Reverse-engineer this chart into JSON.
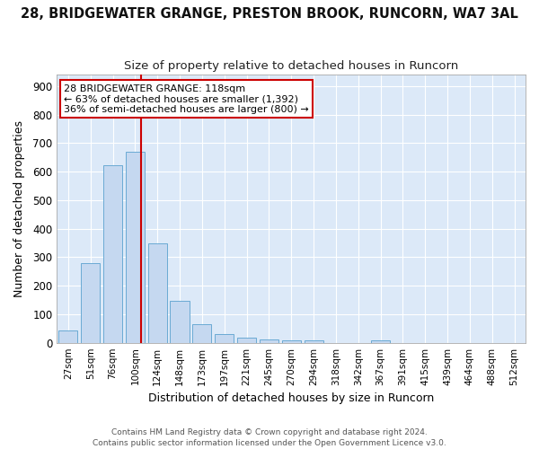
{
  "title": "28, BRIDGEWATER GRANGE, PRESTON BROOK, RUNCORN, WA7 3AL",
  "subtitle": "Size of property relative to detached houses in Runcorn",
  "xlabel": "Distribution of detached houses by size in Runcorn",
  "ylabel": "Number of detached properties",
  "footer_line1": "Contains HM Land Registry data © Crown copyright and database right 2024.",
  "footer_line2": "Contains public sector information licensed under the Open Government Licence v3.0.",
  "bar_labels": [
    "27sqm",
    "51sqm",
    "76sqm",
    "100sqm",
    "124sqm",
    "148sqm",
    "173sqm",
    "197sqm",
    "221sqm",
    "245sqm",
    "270sqm",
    "294sqm",
    "318sqm",
    "342sqm",
    "367sqm",
    "391sqm",
    "415sqm",
    "439sqm",
    "464sqm",
    "488sqm",
    "512sqm"
  ],
  "bar_values": [
    42,
    280,
    622,
    670,
    348,
    148,
    65,
    30,
    17,
    13,
    10,
    10,
    0,
    0,
    8,
    0,
    0,
    0,
    0,
    0,
    0
  ],
  "bar_color": "#c5d8f0",
  "bar_edge_color": "#6aaad4",
  "fig_background_color": "#ffffff",
  "plot_background_color": "#dce9f8",
  "grid_color": "#ffffff",
  "vline_color": "#cc0000",
  "annotation_text": "28 BRIDGEWATER GRANGE: 118sqm\n← 63% of detached houses are smaller (1,392)\n36% of semi-detached houses are larger (800) →",
  "annotation_box_color": "#ffffff",
  "annotation_box_edge": "#cc0000",
  "ylim": [
    0,
    940
  ],
  "yticks": [
    0,
    100,
    200,
    300,
    400,
    500,
    600,
    700,
    800,
    900
  ],
  "title_fontsize": 10.5,
  "subtitle_fontsize": 9.5,
  "annotation_fontsize": 8.0,
  "xlabel_fontsize": 9,
  "ylabel_fontsize": 9,
  "tick_fontsize": 7.5,
  "ytick_fontsize": 8.5,
  "footer_fontsize": 6.5,
  "vline_xcoord": 3.25
}
